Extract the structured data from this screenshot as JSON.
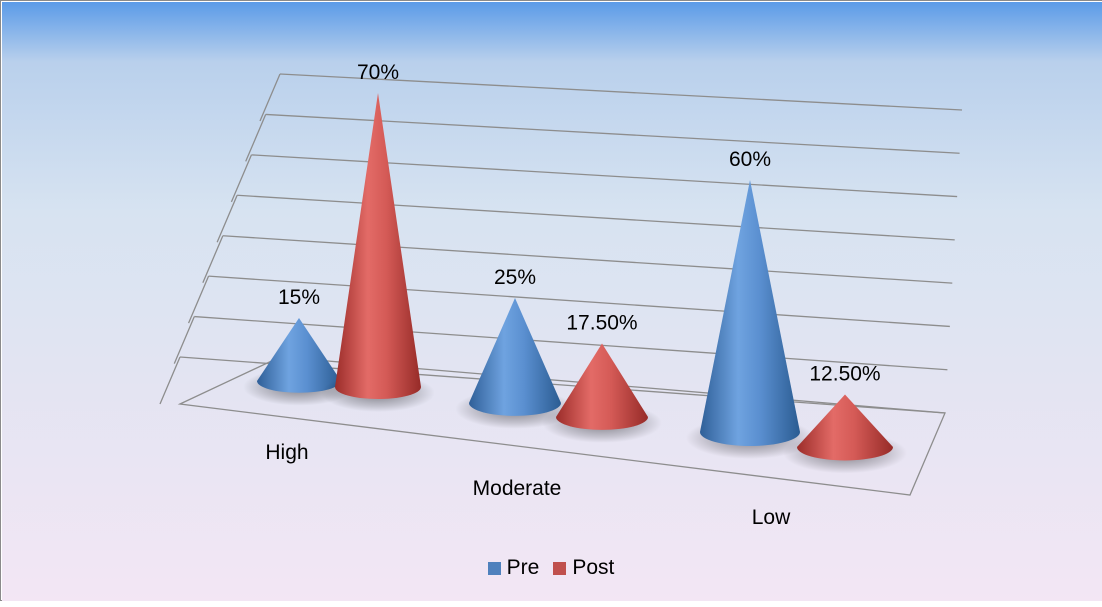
{
  "chart_data": {
    "type": "bar",
    "shape": "3d-cone",
    "categories": [
      "High",
      "Moderate",
      "Low"
    ],
    "series": [
      {
        "name": "Pre",
        "values": [
          15,
          25,
          60
        ],
        "labels": [
          "15%",
          "25%",
          "60%"
        ],
        "color": "#4F81BD"
      },
      {
        "name": "Post",
        "values": [
          70,
          17.5,
          12.5
        ],
        "labels": [
          "70%",
          "17.50%",
          "12.50%"
        ],
        "color": "#C0504D"
      }
    ],
    "ylim": [
      0,
      70
    ],
    "grid": true,
    "legend_position": "bottom"
  }
}
